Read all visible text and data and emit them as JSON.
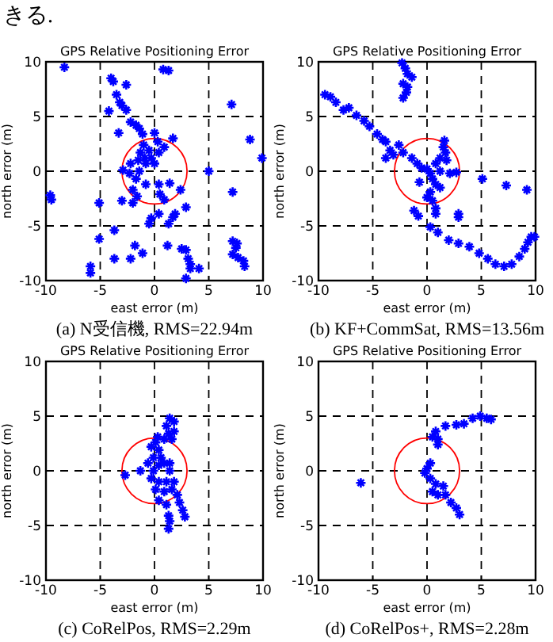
{
  "chart_data": [
    {
      "type": "scatter",
      "title": "GPS Relative Positioning Error",
      "xlabel": "east error (m)",
      "ylabel": "north error (m)",
      "xlim": [
        -10,
        10
      ],
      "ylim": [
        -10,
        10
      ],
      "xticks": [
        -10,
        -5,
        0,
        5,
        10
      ],
      "yticks": [
        -10,
        -5,
        0,
        5,
        10
      ],
      "grid": true,
      "marker": "cross",
      "annotations": [
        "きる.",
        "(a) N受信機, RMS=22.94m"
      ],
      "series": [
        {
          "type": "scatter",
          "color": "#0000ff",
          "x": [
            -8.3,
            0.8,
            1.3,
            -4.0,
            -3.8,
            -2.6,
            -3.5,
            -3.2,
            -3.0,
            -2.6,
            -4.2,
            7.1,
            -2.2,
            -1.7,
            -1.4,
            -3.3,
            -1.1,
            0,
            1.7,
            8.8,
            9.9,
            -1.0,
            -0.5,
            -1.3,
            -0.9,
            -0.3,
            -0.8,
            0,
            -1.5,
            0.4,
            0.9,
            0.3,
            -2.2,
            -2.9,
            -2.3,
            -1.7,
            -1.4,
            -0.8,
            0.4,
            1.4,
            2.4,
            -2.0,
            -1.6,
            -3.0,
            -2.0,
            5.0,
            7.2,
            -9.6,
            -9.5,
            -5.1,
            0.5,
            0.9,
            2.9,
            1.9,
            1.7,
            0.4,
            -0.3,
            -0.5,
            -3.7,
            1.3,
            -5.1,
            -1.8,
            1.2,
            2.5,
            2.9,
            7.2,
            7.6,
            7.5,
            7.2,
            7.7,
            8.2,
            8.3,
            -3.7,
            -2.2,
            -1.1,
            3.1,
            3.3,
            3.3,
            4.1,
            -5.9,
            -5.9,
            2.9
          ],
          "values": [
            9.5,
            9.3,
            9.2,
            8.5,
            8.2,
            7.9,
            7.0,
            6.3,
            6.0,
            5.6,
            5.5,
            6.1,
            4.5,
            4.2,
            3.9,
            3.5,
            3.4,
            3.5,
            3.0,
            2.9,
            1.2,
            2.4,
            1.9,
            1.7,
            1.2,
            1.2,
            0.7,
            0.7,
            1.0,
            1.7,
            2.2,
            2.7,
            0.7,
            0.1,
            -0.2,
            -0.7,
            0,
            -1.2,
            -1.2,
            -1.1,
            -1.7,
            -1.7,
            -2.3,
            -2.7,
            -2.9,
            0.0,
            -1.9,
            -2.2,
            -2.6,
            -2.9,
            -2.1,
            -2.6,
            -3.3,
            -3.9,
            -4.2,
            -3.9,
            -4.3,
            -4.8,
            -5.4,
            -4.8,
            -6.2,
            -6.8,
            -6.8,
            -7.1,
            -7.2,
            -6.4,
            -6.6,
            -7.0,
            -7.6,
            -7.9,
            -8.2,
            -8.7,
            -8.0,
            -8.0,
            -7.5,
            -8.0,
            -8.5,
            -8.9,
            -8.9,
            -8.7,
            -9.3,
            -9.8
          ]
        }
      ]
    },
    {
      "type": "scatter",
      "title": "GPS Relative Positioning Error",
      "xlabel": "east error (m)",
      "ylabel": "north error (m)",
      "xlim": [
        -10,
        10
      ],
      "ylim": [
        -10,
        10
      ],
      "xticks": [
        -10,
        -5,
        0,
        5,
        10
      ],
      "yticks": [
        -10,
        -5,
        0,
        5,
        10
      ],
      "grid": true,
      "marker": "cross",
      "annotations": [
        "(b) KF+CommSat, RMS=13.56m"
      ],
      "series": [
        {
          "type": "scatter",
          "color": "#0000ff",
          "x": [
            -2.3,
            -2.0,
            -1.8,
            -1.4,
            -2.2,
            -1.8,
            -1.9,
            -2.2,
            -9.4,
            -8.9,
            -8.4,
            -7.7,
            -7.2,
            -6.5,
            -5.8,
            -5.3,
            -4.6,
            -3.8,
            -3.4,
            -3.8,
            -3.1,
            -2.6,
            -2.2,
            -1.4,
            -0.9,
            -0.5,
            -4.1,
            0,
            0.3,
            0.5,
            0.8,
            1.2,
            1.5,
            1.6,
            1.7,
            1.8,
            1.2,
            2.1,
            2.7,
            0.8,
            1.2,
            0.3,
            0.5,
            0.8,
            0.8,
            0,
            -0.7,
            2.9,
            2.9,
            5.1,
            7.3,
            9.2,
            -1.2,
            -0.8,
            0.3,
            1.0,
            2.0,
            2.9,
            3.9,
            4.8,
            5.6,
            6.3,
            7.1,
            7.8,
            8.5,
            9.0,
            9.3,
            9.6,
            9.9
          ],
          "values": [
            9.9,
            9.4,
            8.9,
            8.6,
            8.0,
            7.7,
            7.2,
            6.7,
            7.0,
            6.8,
            6.3,
            5.6,
            5.8,
            5.1,
            4.6,
            4.1,
            3.4,
            2.7,
            1.9,
            1.2,
            1.5,
            2.4,
            1.7,
            1.2,
            0.7,
            0.3,
            2.9,
            0.2,
            -0.2,
            -0.7,
            0.7,
            1.2,
            2.2,
            2.8,
            1.7,
            1.0,
            0,
            -0.2,
            -0.1,
            -1.2,
            -1.5,
            -1.9,
            -2.7,
            -3.4,
            -3.9,
            -2.4,
            -1.0,
            -3.9,
            -4.2,
            -0.7,
            -1.3,
            -1.7,
            -3.6,
            -4.1,
            -5.1,
            -5.6,
            -6.3,
            -6.6,
            -6.9,
            -7.5,
            -8.0,
            -8.5,
            -8.7,
            -8.5,
            -7.8,
            -7.1,
            -6.5,
            -6.0,
            -6.0
          ]
        }
      ]
    },
    {
      "type": "scatter",
      "title": "GPS Relative Positioning Error",
      "xlabel": "east error (m)",
      "ylabel": "north error (m)",
      "xlim": [
        -10,
        10
      ],
      "ylim": [
        -10,
        10
      ],
      "xticks": [
        -10,
        -5,
        0,
        5,
        10
      ],
      "yticks": [
        -10,
        -5,
        0,
        5,
        10
      ],
      "grid": true,
      "marker": "cross",
      "annotations": [
        "(c) CoRelPos, RMS=2.29m"
      ],
      "series": [
        {
          "type": "scatter",
          "color": "#0000ff",
          "x": [
            1.4,
            1.8,
            1.1,
            1.8,
            1.3,
            0.9,
            1.6,
            0.1,
            -0.3,
            0.4,
            -0.1,
            0.6,
            -0.6,
            0.4,
            0.9,
            1.4,
            -0.1,
            -1.3,
            -2.7,
            -0.3,
            0.4,
            1.1,
            1.8,
            0.1,
            0.9,
            1.6,
            2.1,
            0.4,
            1.1,
            2.3,
            2.6,
            2.8,
            1.3,
            1.4,
            1.3,
            1.4,
            0.3
          ],
          "values": [
            4.8,
            4.5,
            4.1,
            3.6,
            3.4,
            2.9,
            2.9,
            2.6,
            2.2,
            1.9,
            1.2,
            1.2,
            0.7,
            0.5,
            0.7,
            0,
            0,
            0,
            -0.4,
            -0.7,
            -1.0,
            -1.0,
            -1.0,
            -1.7,
            -1.9,
            -1.7,
            -2.2,
            -2.7,
            -3.1,
            -2.9,
            -3.6,
            -4.2,
            -4.1,
            -4.6,
            -5.3,
            0.7,
            3.1
          ]
        }
      ]
    },
    {
      "type": "scatter",
      "title": "GPS Relative Positioning Error",
      "xlabel": "east error (m)",
      "ylabel": "north error (m)",
      "xlim": [
        -10,
        10
      ],
      "ylim": [
        -10,
        10
      ],
      "xticks": [
        -10,
        -5,
        0,
        5,
        10
      ],
      "yticks": [
        -10,
        -5,
        0,
        5,
        10
      ],
      "grid": true,
      "marker": "cross",
      "annotations": [
        "(d) CoRelPos+, RMS=2.28m"
      ],
      "series": [
        {
          "type": "scatter",
          "color": "#0000ff",
          "x": [
            -6.1,
            0.8,
            0.5,
            1.0,
            1.0,
            1.7,
            2.7,
            3.4,
            4.2,
            4.9,
            5.5,
            5.9,
            0.3,
            0,
            -0.2,
            0.3,
            0.8,
            1.5,
            0.5,
            1.0,
            1.7,
            2.2,
            2.7,
            3.0
          ],
          "values": [
            -1.1,
            3.6,
            3.1,
            2.9,
            2.4,
            4.1,
            4.2,
            4.3,
            4.8,
            5.0,
            4.8,
            4.7,
            0.7,
            0.2,
            -0.2,
            -0.7,
            -1.2,
            -1.4,
            -1.9,
            -2.2,
            -2.2,
            -2.9,
            -3.4,
            -4.0
          ]
        }
      ]
    }
  ]
}
